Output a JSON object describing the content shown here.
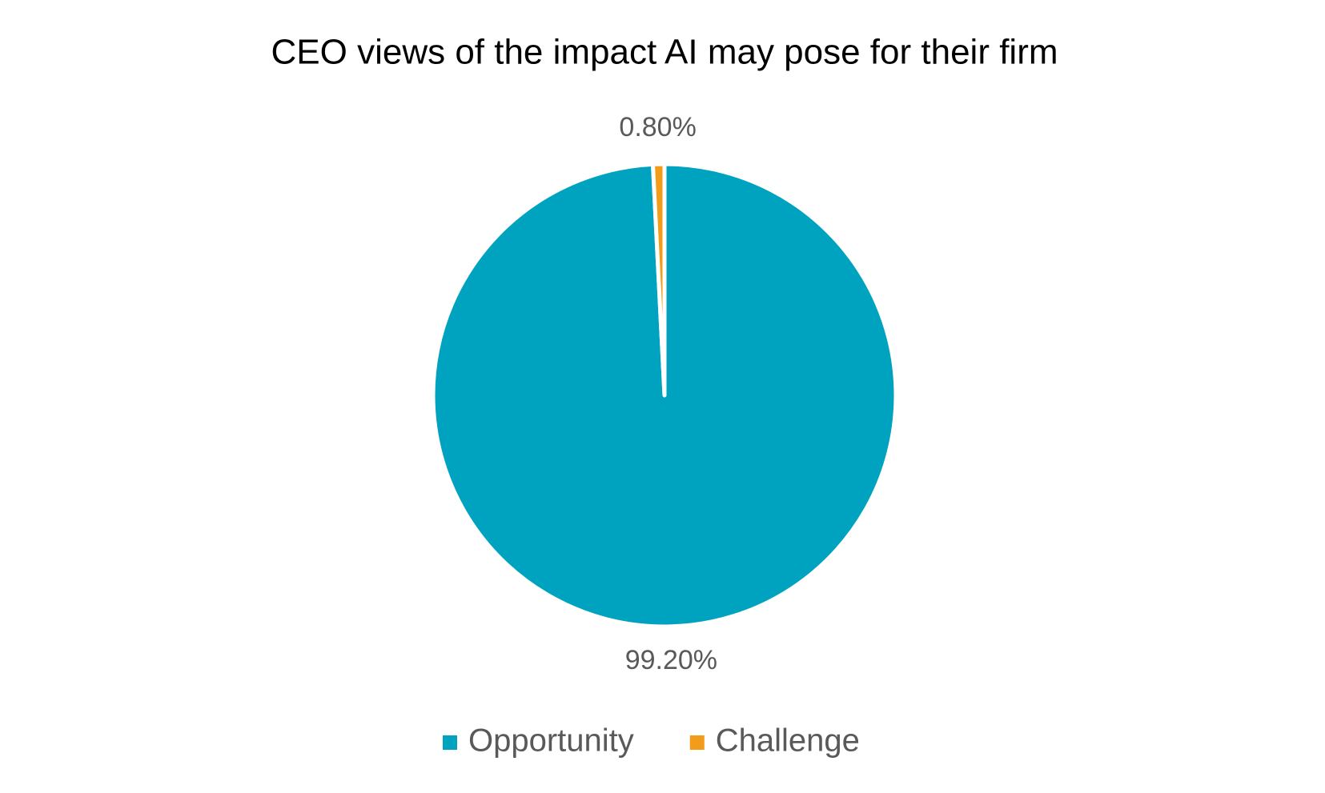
{
  "chart_data": {
    "type": "pie",
    "title": "CEO views of the impact AI may pose for their firm",
    "categories": [
      "Opportunity",
      "Challenge"
    ],
    "values": [
      99.2,
      0.8
    ],
    "value_labels": [
      "99.20%",
      "0.80%"
    ],
    "colors": [
      "#00a3bf",
      "#f39c1a"
    ],
    "legend": "bottom"
  }
}
